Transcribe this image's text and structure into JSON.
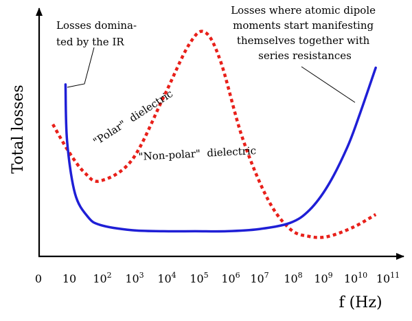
{
  "chart_data": {
    "type": "line",
    "title": "",
    "xlabel": "f (Hz)",
    "ylabel": "Total losses",
    "x_scale": "log",
    "x_ticks": [
      {
        "base": "0",
        "exp": ""
      },
      {
        "base": "10",
        "exp": ""
      },
      {
        "base": "10",
        "exp": "2"
      },
      {
        "base": "10",
        "exp": "3"
      },
      {
        "base": "10",
        "exp": "4"
      },
      {
        "base": "10",
        "exp": "5"
      },
      {
        "base": "10",
        "exp": "6"
      },
      {
        "base": "10",
        "exp": "7"
      },
      {
        "base": "10",
        "exp": "8"
      },
      {
        "base": "10",
        "exp": "9"
      },
      {
        "base": "10",
        "exp": "10"
      },
      {
        "base": "10",
        "exp": "11"
      }
    ],
    "series": [
      {
        "name": "\"Non-polar\"  dielectric",
        "style": "solid",
        "color": "#1f1fd6",
        "log10_f": [
          0.9,
          0.95,
          1.2,
          1.6,
          2.0,
          3.0,
          4.0,
          5.0,
          6.0,
          7.0,
          8.0,
          8.6,
          9.2,
          9.8,
          10.2,
          10.7
        ],
        "value": [
          82,
          55,
          30,
          19,
          15,
          12.5,
          12,
          12,
          12,
          13,
          16,
          22,
          34,
          52,
          68,
          90
        ]
      },
      {
        "name": "\"Polar\"  dielectric",
        "style": "dotted",
        "color": "#e8201a",
        "log10_f": [
          0.5,
          1.0,
          1.5,
          2.0,
          3.0,
          4.0,
          4.8,
          5.3,
          5.8,
          6.5,
          7.3,
          8.0,
          8.6,
          9.2,
          10.0,
          10.7
        ],
        "value": [
          63,
          50,
          40,
          36,
          46,
          76,
          101,
          107,
          93,
          56,
          27,
          13,
          9.5,
          9.5,
          14,
          20
        ]
      }
    ],
    "annotations": [
      {
        "id": "ir",
        "lines": [
          "Losses domina-",
          "ted by the IR"
        ]
      },
      {
        "id": "dipole",
        "lines": [
          "Losses where atomic dipole",
          "moments start manifesting",
          "themselves together with",
          "series resistances"
        ]
      }
    ]
  }
}
